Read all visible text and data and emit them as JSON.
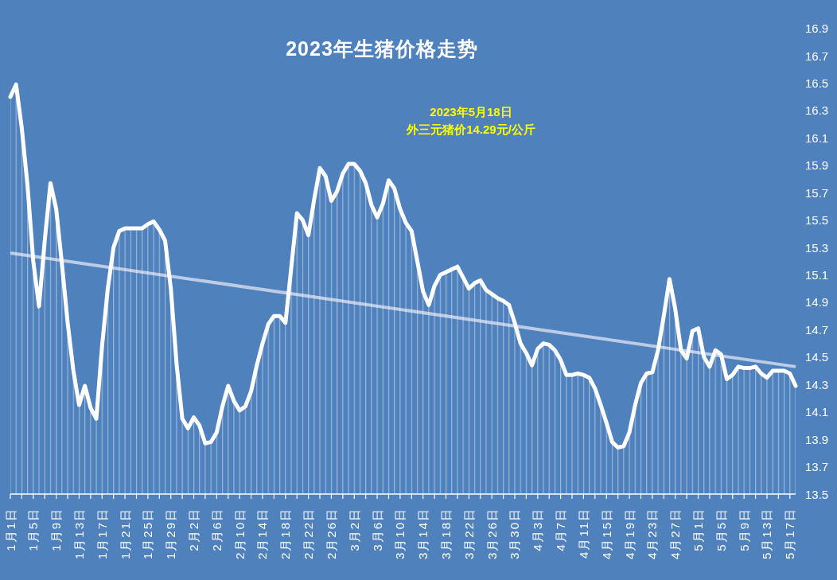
{
  "chart_data": {
    "type": "area",
    "title": "2023年生猪价格走势",
    "annotations": [
      "2023年5月18日",
      "外三元猪价14.29元/公斤"
    ],
    "x": [
      "--01-01",
      "--01-02",
      "--01-03",
      "--01-04",
      "--01-05",
      "--01-06",
      "--01-07",
      "--01-08",
      "--01-09",
      "--01-10",
      "--01-11",
      "--01-12",
      "--01-13",
      "--01-14",
      "--01-15",
      "--01-16",
      "--01-17",
      "--01-18",
      "--01-19",
      "--01-20",
      "--01-21",
      "--01-22",
      "--01-23",
      "--01-24",
      "--01-25",
      "--01-26",
      "--01-27",
      "--01-28",
      "--01-29",
      "--01-30",
      "--01-31",
      "--02-01",
      "--02-02",
      "--02-03",
      "--02-04",
      "--02-05",
      "--02-06",
      "--02-07",
      "--02-08",
      "--02-09",
      "--02-10",
      "--02-11",
      "--02-12",
      "--02-13",
      "--02-14",
      "--02-15",
      "--02-16",
      "--02-17",
      "--02-18",
      "--02-19",
      "--02-20",
      "--02-21",
      "--02-22",
      "--02-23",
      "--02-24",
      "--02-25",
      "--02-26",
      "--02-27",
      "--02-28",
      "--03-01",
      "--03-02",
      "--03-03",
      "--03-04",
      "--03-05",
      "--03-06",
      "--03-07",
      "--03-08",
      "--03-09",
      "--03-10",
      "--03-11",
      "--03-12",
      "--03-13",
      "--03-14",
      "--03-15",
      "--03-16",
      "--03-17",
      "--03-18",
      "--03-19",
      "--03-20",
      "--03-21",
      "--03-22",
      "--03-23",
      "--03-24",
      "--03-25",
      "--03-26",
      "--03-27",
      "--03-28",
      "--03-29",
      "--03-30",
      "--03-31",
      "--04-01",
      "--04-02",
      "--04-03",
      "--04-04",
      "--04-05",
      "--04-06",
      "--04-07",
      "--04-08",
      "--04-09",
      "--04-10",
      "--04-11",
      "--04-12",
      "--04-13",
      "--04-14",
      "--04-15",
      "--04-16",
      "--04-17",
      "--04-18",
      "--04-19",
      "--04-20",
      "--04-21",
      "--04-22",
      "--04-23",
      "--04-24",
      "--04-25",
      "--04-26",
      "--04-27",
      "--04-28",
      "--04-29",
      "--04-30",
      "--05-01",
      "--05-02",
      "--05-03",
      "--05-04",
      "--05-05",
      "--05-06",
      "--05-07",
      "--05-08",
      "--05-09",
      "--05-10",
      "--05-11",
      "--05-12",
      "--05-13",
      "--05-14",
      "--05-15",
      "--05-16",
      "--05-17",
      "--05-18"
    ],
    "xlim": [
      "--01-01",
      "--05-18"
    ],
    "xticks": [
      {
        "value": "--01-01",
        "label": "1月1日"
      },
      {
        "value": "--01-03",
        "label": null
      },
      {
        "value": "--01-05",
        "label": "1月5日"
      },
      {
        "value": "--01-07",
        "label": null
      },
      {
        "value": "--01-09",
        "label": "1月9日"
      },
      {
        "value": "--01-11",
        "label": null
      },
      {
        "value": "--01-13",
        "label": "1月13日"
      },
      {
        "value": "--01-15",
        "label": null
      },
      {
        "value": "--01-17",
        "label": "1月17日"
      },
      {
        "value": "--01-19",
        "label": null
      },
      {
        "value": "--01-21",
        "label": "1月21日"
      },
      {
        "value": "--01-23",
        "label": null
      },
      {
        "value": "--01-25",
        "label": "1月25日"
      },
      {
        "value": "--01-27",
        "label": null
      },
      {
        "value": "--01-29",
        "label": "1月29日"
      },
      {
        "value": "--01-31",
        "label": null
      },
      {
        "value": "--02-02",
        "label": "2月2日"
      },
      {
        "value": "--02-04",
        "label": null
      },
      {
        "value": "--02-06",
        "label": "2月6日"
      },
      {
        "value": "--02-08",
        "label": null
      },
      {
        "value": "--02-10",
        "label": "2月10日"
      },
      {
        "value": "--02-12",
        "label": null
      },
      {
        "value": "--02-14",
        "label": "2月14日"
      },
      {
        "value": "--02-16",
        "label": null
      },
      {
        "value": "--02-18",
        "label": "2月18日"
      },
      {
        "value": "--02-20",
        "label": null
      },
      {
        "value": "--02-22",
        "label": "2月22日"
      },
      {
        "value": "--02-24",
        "label": null
      },
      {
        "value": "--02-26",
        "label": "2月26日"
      },
      {
        "value": "--02-28",
        "label": null
      },
      {
        "value": "--03-02",
        "label": "3月2日"
      },
      {
        "value": "--03-04",
        "label": null
      },
      {
        "value": "--03-06",
        "label": "3月6日"
      },
      {
        "value": "--03-08",
        "label": null
      },
      {
        "value": "--03-10",
        "label": "3月10日"
      },
      {
        "value": "--03-12",
        "label": null
      },
      {
        "value": "--03-14",
        "label": "3月14日"
      },
      {
        "value": "--03-16",
        "label": null
      },
      {
        "value": "--03-18",
        "label": "3月18日"
      },
      {
        "value": "--03-20",
        "label": null
      },
      {
        "value": "--03-22",
        "label": "3月22日"
      },
      {
        "value": "--03-24",
        "label": null
      },
      {
        "value": "--03-26",
        "label": "3月26日"
      },
      {
        "value": "--03-28",
        "label": null
      },
      {
        "value": "--03-30",
        "label": "3月30日"
      },
      {
        "value": "--04-01",
        "label": null
      },
      {
        "value": "--04-03",
        "label": "4月3日"
      },
      {
        "value": "--04-05",
        "label": null
      },
      {
        "value": "--04-07",
        "label": "4月7日"
      },
      {
        "value": "--04-09",
        "label": null
      },
      {
        "value": "--04-11",
        "label": "4月11日"
      },
      {
        "value": "--04-13",
        "label": null
      },
      {
        "value": "--04-15",
        "label": "4月15日"
      },
      {
        "value": "--04-17",
        "label": null
      },
      {
        "value": "--04-19",
        "label": "4月19日"
      },
      {
        "value": "--04-21",
        "label": null
      },
      {
        "value": "--04-23",
        "label": "4月23日"
      },
      {
        "value": "--04-25",
        "label": null
      },
      {
        "value": "--04-27",
        "label": "4月27日"
      },
      {
        "value": "--04-29",
        "label": null
      },
      {
        "value": "--05-01",
        "label": "5月1日"
      },
      {
        "value": "--05-03",
        "label": null
      },
      {
        "value": "--05-05",
        "label": "5月5日"
      },
      {
        "value": "--05-07",
        "label": null
      },
      {
        "value": "--05-09",
        "label": "5月9日"
      },
      {
        "value": "--05-11",
        "label": null
      },
      {
        "value": "--05-13",
        "label": "5月13日"
      },
      {
        "value": "--05-15",
        "label": null
      },
      {
        "value": "--05-17",
        "label": "5月17日"
      }
    ],
    "ylim": [
      13.5,
      16.9
    ],
    "yticks": [
      13.5,
      13.7,
      13.9,
      14.1,
      14.3,
      14.5,
      14.7,
      14.9,
      15.1,
      15.3,
      15.5,
      15.7,
      15.9,
      16.1,
      16.3,
      16.5,
      16.7,
      16.9
    ],
    "series": [
      {
        "color": "#ffffff",
        "values": [
          16.4,
          16.49,
          16.17,
          15.75,
          15.2,
          14.87,
          15.35,
          15.77,
          15.58,
          15.18,
          14.75,
          14.4,
          14.15,
          14.29,
          14.13,
          14.05,
          14.58,
          15.0,
          15.3,
          15.42,
          15.44,
          15.44,
          15.44,
          15.44,
          15.47,
          15.49,
          15.43,
          15.35,
          15.0,
          14.45,
          14.05,
          13.98,
          14.06,
          14.0,
          13.87,
          13.88,
          13.95,
          14.14,
          14.29,
          14.18,
          14.11,
          14.14,
          14.25,
          14.44,
          14.6,
          14.74,
          14.8,
          14.8,
          14.75,
          15.15,
          15.55,
          15.5,
          15.39,
          15.65,
          15.88,
          15.82,
          15.64,
          15.71,
          15.84,
          15.91,
          15.91,
          15.86,
          15.77,
          15.61,
          15.52,
          15.62,
          15.79,
          15.73,
          15.58,
          15.48,
          15.42,
          15.2,
          14.98,
          14.88,
          15.02,
          15.1,
          15.12,
          15.14,
          15.16,
          15.08,
          15.0,
          15.04,
          15.06,
          14.99,
          14.96,
          14.93,
          14.91,
          14.88,
          14.75,
          14.6,
          14.53,
          14.44,
          14.56,
          14.6,
          14.59,
          14.55,
          14.48,
          14.37,
          14.37,
          14.38,
          14.37,
          14.35,
          14.27,
          14.15,
          14.02,
          13.88,
          13.84,
          13.85,
          13.95,
          14.15,
          14.31,
          14.38,
          14.39,
          14.55,
          14.8,
          15.07,
          14.85,
          14.55,
          14.49,
          14.69,
          14.71,
          14.5,
          14.43,
          14.55,
          14.52,
          14.34,
          14.37,
          14.43,
          14.42,
          14.42,
          14.43,
          14.38,
          14.35,
          14.4,
          14.4,
          14.4,
          14.38,
          14.29
        ]
      },
      {
        "type": "line",
        "color": "#bccce6",
        "x": [
          "--01-01",
          "--05-18"
        ],
        "values": [
          15.26,
          14.43
        ]
      }
    ]
  }
}
